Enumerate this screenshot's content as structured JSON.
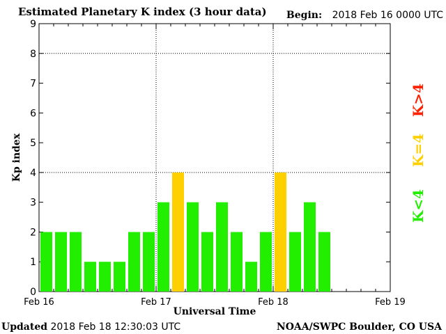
{
  "header": {
    "title": "Estimated Planetary K index (3 hour data)",
    "begin_label": "Begin:",
    "begin_value": "2018 Feb 16 0000 UTC"
  },
  "footer": {
    "updated_label": "Updated",
    "updated_value": "2018 Feb 18 12:30:03 UTC",
    "source": "NOAA/SWPC Boulder, CO USA"
  },
  "legend": [
    {
      "label": "K>4",
      "color": "#ff2200"
    },
    {
      "label": "K=4",
      "color": "#ffd000"
    },
    {
      "label": "K<4",
      "color": "#22ee00"
    }
  ],
  "chart_data": {
    "type": "bar",
    "title": "Estimated Planetary K index (3 hour data)",
    "xlabel": "Universal Time",
    "ylabel": "Kp index",
    "ylim": [
      0,
      9
    ],
    "yticks": [
      "0",
      "1",
      "2",
      "3",
      "4",
      "5",
      "6",
      "7",
      "8",
      "9"
    ],
    "xticks": [
      "Feb 16",
      "Feb 17",
      "Feb 18",
      "Feb 19"
    ],
    "grid": true,
    "bins_per_day": 8,
    "values": [
      2,
      2,
      2,
      1,
      1,
      1,
      2,
      2,
      3,
      4,
      3,
      2,
      3,
      2,
      1,
      2,
      4,
      2,
      3,
      2
    ],
    "colors": {
      "below_4": "#22ee00",
      "equal_4": "#ffd000",
      "above_4": "#ff2200"
    }
  }
}
